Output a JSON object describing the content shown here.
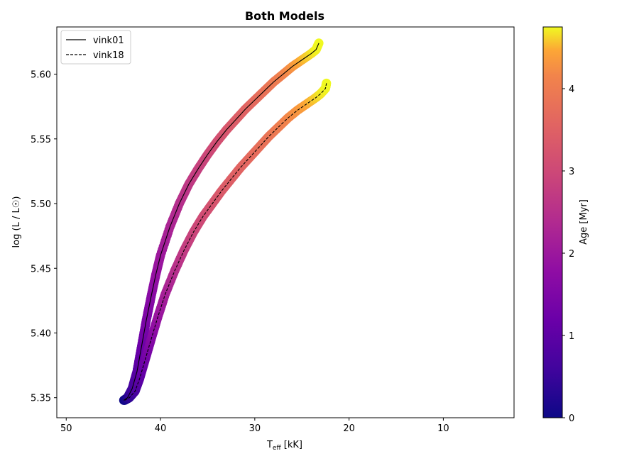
{
  "chart_data": {
    "type": "scatter",
    "title": "Both Models",
    "xlabel_main": "T",
    "xlabel_sub": "eff",
    "xlabel_unit": " [kK]",
    "ylabel": "log (L / L☉)",
    "xlim": [
      51,
      2.5
    ],
    "ylim": [
      5.3345,
      5.6365
    ],
    "xticks": [
      50,
      40,
      30,
      20,
      10
    ],
    "xtick_labels": [
      "50",
      "40",
      "30",
      "20",
      "10"
    ],
    "yticks": [
      5.35,
      5.4,
      5.45,
      5.5,
      5.55,
      5.6
    ],
    "ytick_labels": [
      "5.35",
      "5.40",
      "5.45",
      "5.50",
      "5.55",
      "5.60"
    ],
    "legend_position": "upper-left",
    "colorbar": {
      "label": "Age [Myr]",
      "range": [
        0,
        4.75
      ],
      "ticks": [
        0,
        1,
        2,
        3,
        4
      ],
      "tick_labels": [
        "0",
        "1",
        "2",
        "3",
        "4"
      ],
      "colormap": "plasma"
    },
    "series": [
      {
        "name": "vink01",
        "line_style": "solid",
        "teff": [
          43.9,
          43.5,
          43.0,
          42.5,
          42.0,
          41.5,
          41.0,
          40.5,
          40.0,
          39.0,
          38.0,
          37.0,
          36.0,
          35.0,
          34.0,
          33.0,
          32.0,
          31.0,
          30.0,
          29.0,
          28.0,
          27.0,
          26.0,
          25.0,
          24.0,
          23.5,
          23.2
        ],
        "logL": [
          5.348,
          5.35,
          5.357,
          5.37,
          5.39,
          5.41,
          5.428,
          5.445,
          5.46,
          5.482,
          5.5,
          5.515,
          5.527,
          5.538,
          5.548,
          5.557,
          5.565,
          5.573,
          5.58,
          5.587,
          5.594,
          5.6,
          5.606,
          5.611,
          5.616,
          5.619,
          5.624
        ],
        "age": [
          0.0,
          0.3,
          0.6,
          0.9,
          1.2,
          1.45,
          1.65,
          1.85,
          2.0,
          2.25,
          2.45,
          2.65,
          2.8,
          2.95,
          3.1,
          3.25,
          3.4,
          3.52,
          3.65,
          3.8,
          3.95,
          4.1,
          4.3,
          4.5,
          4.65,
          4.72,
          4.75
        ]
      },
      {
        "name": "vink18",
        "line_style": "dashed",
        "teff": [
          43.8,
          43.3,
          42.7,
          42.2,
          41.6,
          41.0,
          40.3,
          39.5,
          38.5,
          37.5,
          36.5,
          35.5,
          34.5,
          33.5,
          32.5,
          31.5,
          30.5,
          29.5,
          28.5,
          27.5,
          26.5,
          25.5,
          24.5,
          23.5,
          23.0,
          22.5,
          22.4
        ],
        "logL": [
          5.348,
          5.35,
          5.355,
          5.365,
          5.38,
          5.395,
          5.412,
          5.43,
          5.448,
          5.464,
          5.478,
          5.49,
          5.5,
          5.51,
          5.519,
          5.528,
          5.536,
          5.544,
          5.552,
          5.559,
          5.566,
          5.572,
          5.577,
          5.582,
          5.585,
          5.589,
          5.593
        ],
        "age": [
          0.0,
          0.35,
          0.7,
          1.0,
          1.3,
          1.6,
          1.9,
          2.15,
          2.45,
          2.7,
          2.9,
          3.05,
          3.2,
          3.35,
          3.45,
          3.55,
          3.65,
          3.75,
          3.85,
          4.0,
          4.15,
          4.3,
          4.45,
          4.6,
          4.68,
          4.73,
          4.75
        ]
      }
    ]
  }
}
